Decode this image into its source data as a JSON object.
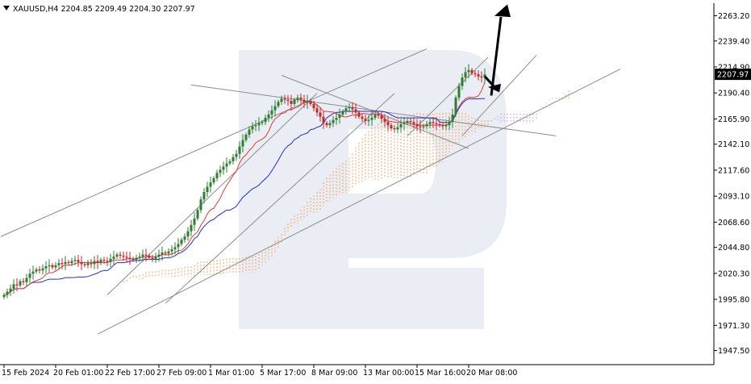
{
  "header": {
    "text": "XAUUSD,H4  2204.85 2209.49 2204.30 2207.97"
  },
  "colors": {
    "background": "#ffffff",
    "bull_candle": "#2e7d32",
    "bear_candle": "#c62828",
    "tenkan": "#e53935",
    "kijun": "#1e2fd6",
    "cloud_a": "#f0a060",
    "cloud_b": "#c7a0d8",
    "trendlines": "#8c8c8c",
    "arrow": "#000000",
    "watermark": "#e3e8f0",
    "price_tag": "#000000"
  },
  "chart_data": {
    "type": "candlestick",
    "symbol": "XAUUSD",
    "timeframe": "H4",
    "ohlc_current": {
      "open": 2204.85,
      "high": 2209.49,
      "low": 2204.3,
      "close": 2207.97
    },
    "current_price_label": "2207.97",
    "current_price": 2207.97,
    "ylim": [
      1935,
      2275
    ],
    "y_ticks": [
      "2263.20",
      "2239.40",
      "2214.90",
      "2190.40",
      "2165.90",
      "2142.10",
      "2117.60",
      "2093.10",
      "2068.60",
      "2044.80",
      "2020.30",
      "1995.80",
      "1971.30",
      "1947.50"
    ],
    "y_tick_values": [
      2263.2,
      2239.4,
      2214.9,
      2190.4,
      2165.9,
      2142.1,
      2117.6,
      2093.1,
      2068.6,
      2044.8,
      2020.3,
      1995.8,
      1971.3,
      1947.5
    ],
    "x_ticks": [
      "15 Feb 2024",
      "20 Feb 01:00",
      "22 Feb 17:00",
      "27 Feb 09:00",
      "1 Mar 01:00",
      "5 Mar 17:00",
      "8 Mar 09:00",
      "13 Mar 00:00",
      "15 Mar 16:00",
      "20 Mar 08:00"
    ],
    "x_tick_index": [
      0,
      16,
      32,
      48,
      64,
      80,
      96,
      112,
      128,
      144
    ],
    "bar_count": 150,
    "closes": [
      2000,
      2003,
      2006,
      2010,
      2009,
      2013,
      2012,
      2016,
      2020,
      2022,
      2024,
      2023,
      2025,
      2027,
      2028,
      2026,
      2028,
      2030,
      2029,
      2031,
      2030,
      2032,
      2033,
      2031,
      2029,
      2028,
      2030,
      2029,
      2032,
      2030,
      2033,
      2032,
      2031,
      2034,
      2036,
      2038,
      2037,
      2036,
      2035,
      2034,
      2033,
      2035,
      2036,
      2038,
      2037,
      2035,
      2034,
      2036,
      2038,
      2040,
      2039,
      2041,
      2043,
      2045,
      2048,
      2052,
      2055,
      2060,
      2066,
      2072,
      2080,
      2090,
      2097,
      2102,
      2106,
      2110,
      2115,
      2118,
      2121,
      2124,
      2126,
      2130,
      2133,
      2140,
      2146,
      2151,
      2156,
      2159,
      2160,
      2162,
      2163,
      2167,
      2170,
      2174,
      2178,
      2182,
      2185,
      2184,
      2183,
      2180,
      2184,
      2186,
      2184,
      2181,
      2183,
      2180,
      2176,
      2172,
      2168,
      2162,
      2160,
      2162,
      2165,
      2167,
      2170,
      2173,
      2176,
      2177,
      2175,
      2172,
      2168,
      2166,
      2164,
      2165,
      2167,
      2170,
      2169,
      2166,
      2163,
      2160,
      2157,
      2156,
      2158,
      2161,
      2162,
      2164,
      2163,
      2161,
      2159,
      2158,
      2159,
      2161,
      2163,
      2162,
      2161,
      2160,
      2159,
      2160,
      2163,
      2170,
      2186,
      2197,
      2205,
      2210,
      2212,
      2209,
      2208,
      2206,
      2205,
      2207.97
    ],
    "overlays": [
      "Ichimoku Tenkan-sen",
      "Ichimoku Kijun-sen",
      "Ichimoku Cloud",
      "Trend channel lines",
      "Forecast arrow (up)"
    ],
    "grid": false
  }
}
